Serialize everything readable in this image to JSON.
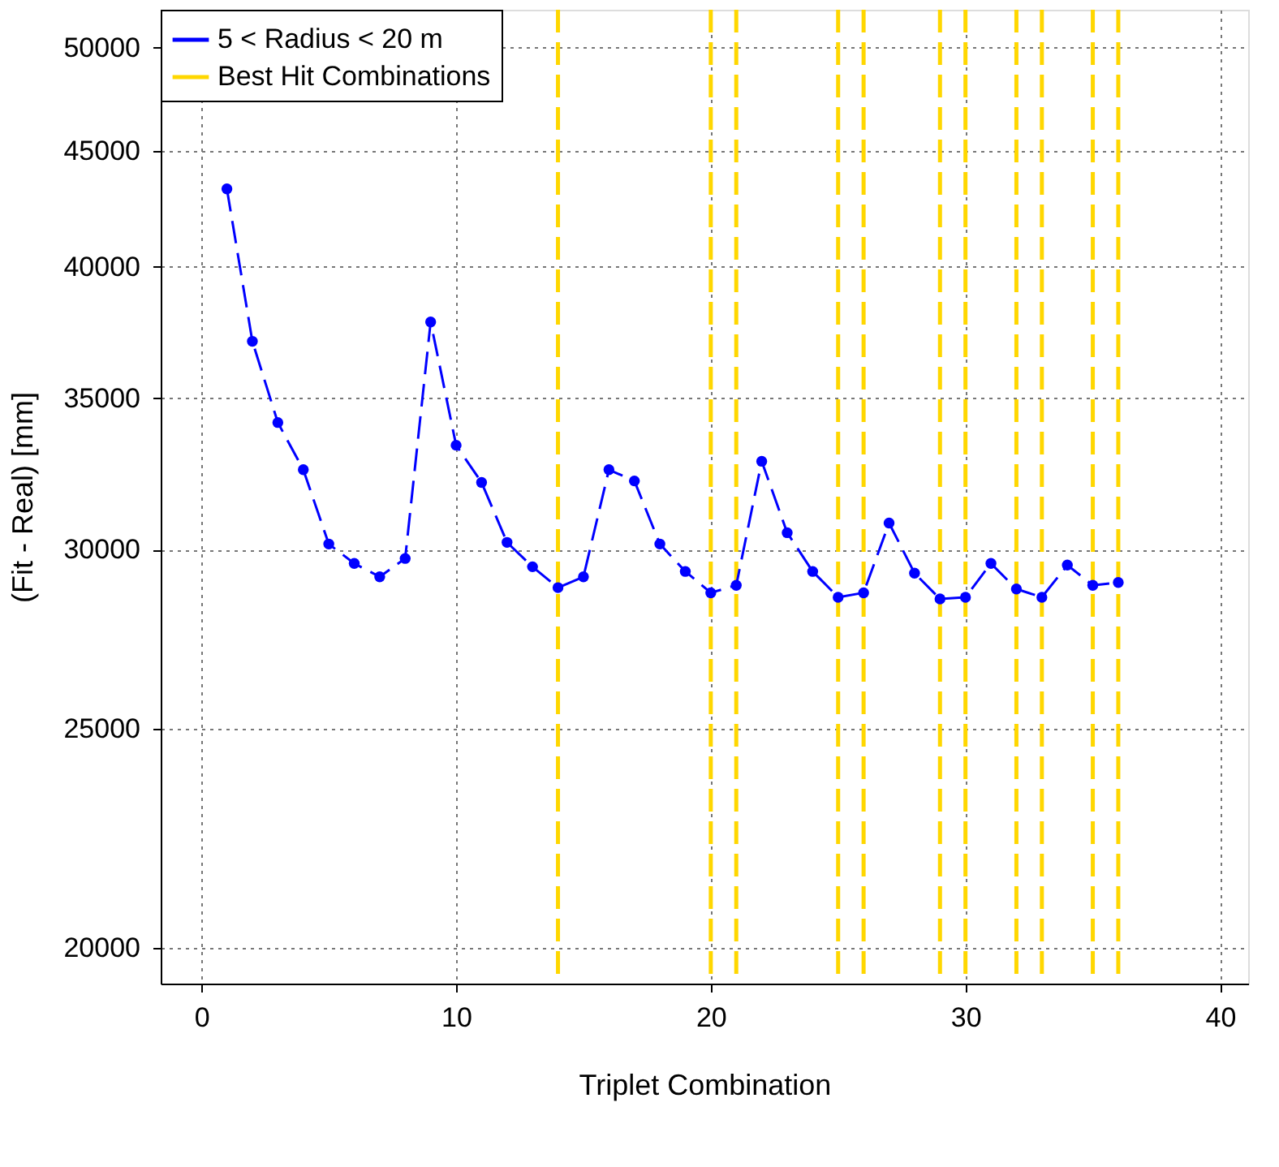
{
  "chart_data": {
    "type": "line",
    "xlabel": "Triplet Combination",
    "ylabel": "(Fit - Real) [mm]",
    "x": [
      1,
      2,
      3,
      4,
      5,
      6,
      7,
      8,
      9,
      10,
      11,
      12,
      13,
      14,
      15,
      16,
      17,
      18,
      19,
      20,
      21,
      22,
      23,
      24,
      25,
      26,
      27,
      28,
      29,
      30,
      31,
      32,
      33,
      34,
      35,
      36
    ],
    "series": [
      {
        "name": "5 < Radius < 20 m",
        "color": "#0000ff",
        "values": [
          43300,
          37080,
          34140,
          32540,
          30170,
          29580,
          29180,
          29730,
          37820,
          33360,
          32120,
          30220,
          29480,
          28860,
          29180,
          32540,
          32170,
          30170,
          29340,
          28710,
          28930,
          32820,
          30520,
          29340,
          28580,
          28710,
          30820,
          29290,
          28530,
          28580,
          29580,
          28820,
          28580,
          29530,
          28930,
          29010
        ],
        "line_style": "dashed"
      }
    ],
    "ref_lines": [
      {
        "axis": "x",
        "value": 14,
        "label": "Best Hit Combinations",
        "color": "#ffd700",
        "line_style": "dashed"
      },
      {
        "axis": "x",
        "value": 20,
        "color": "#ffd700",
        "line_style": "dashed"
      },
      {
        "axis": "x",
        "value": 21,
        "color": "#ffd700",
        "line_style": "dashed"
      },
      {
        "axis": "x",
        "value": 25,
        "color": "#ffd700",
        "line_style": "dashed"
      },
      {
        "axis": "x",
        "value": 26,
        "color": "#ffd700",
        "line_style": "dashed"
      },
      {
        "axis": "x",
        "value": 29,
        "color": "#ffd700",
        "line_style": "dashed"
      },
      {
        "axis": "x",
        "value": 30,
        "color": "#ffd700",
        "line_style": "dashed"
      },
      {
        "axis": "x",
        "value": 32,
        "color": "#ffd700",
        "line_style": "dashed"
      },
      {
        "axis": "x",
        "value": 33,
        "color": "#ffd700",
        "line_style": "dashed"
      },
      {
        "axis": "x",
        "value": 35,
        "color": "#ffd700",
        "line_style": "dashed"
      },
      {
        "axis": "x",
        "value": 36,
        "color": "#ffd700",
        "line_style": "dashed"
      }
    ],
    "xlim": [
      -1.6,
      41.1
    ],
    "xticks": [
      0,
      10,
      20,
      30,
      40
    ],
    "ylim": [
      19290,
      51960
    ],
    "yticks": [
      20000,
      25000,
      30000,
      35000,
      40000,
      45000,
      50000
    ],
    "log": "y",
    "grid": true,
    "legend": "top left",
    "marker": "circle"
  }
}
